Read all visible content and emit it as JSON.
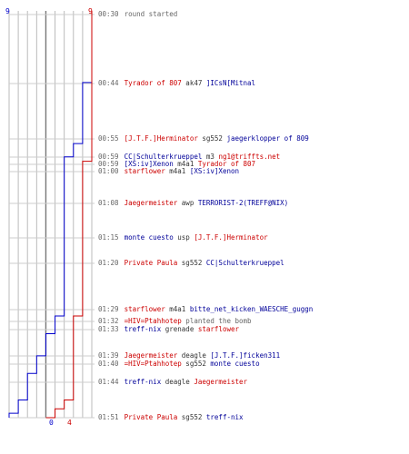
{
  "chart_data": {
    "type": "line",
    "series": [
      {
        "color": "#0000cc",
        "points": [
          [
            0,
            9
          ],
          [
            81,
            9
          ],
          [
            81,
            8
          ],
          [
            150,
            8
          ],
          [
            150,
            7
          ],
          [
            165,
            7
          ],
          [
            165,
            6
          ],
          [
            345,
            6
          ],
          [
            345,
            5
          ],
          [
            365,
            5
          ],
          [
            365,
            4
          ],
          [
            390,
            4
          ],
          [
            390,
            3
          ],
          [
            410,
            3
          ],
          [
            410,
            2
          ],
          [
            440,
            2
          ],
          [
            440,
            1
          ],
          [
            455,
            1
          ],
          [
            455,
            0
          ],
          [
            460,
            0
          ]
        ]
      },
      {
        "color": "#cc0000",
        "points": [
          [
            0,
            9
          ],
          [
            170,
            9
          ],
          [
            170,
            8
          ],
          [
            345,
            8
          ],
          [
            345,
            7
          ],
          [
            440,
            7
          ],
          [
            440,
            6
          ],
          [
            450,
            6
          ],
          [
            450,
            5
          ],
          [
            460,
            5
          ],
          [
            460,
            4
          ]
        ]
      }
    ],
    "ylim": [
      0,
      9
    ],
    "y_labels": [
      {
        "value": "0",
        "color": "#0000cc"
      },
      {
        "value": "4",
        "color": "#cc0000"
      }
    ],
    "top_labels": [
      {
        "value": "9",
        "color": "#0000cc"
      },
      {
        "value": "9",
        "color": "#cc0000"
      }
    ],
    "grid": true
  },
  "events": [
    {
      "time": "00:30",
      "parts": [
        {
          "text": "round started",
          "color": "gray"
        }
      ]
    },
    {
      "time": "00:44",
      "parts": [
        {
          "text": "Tyrador of 807",
          "color": "red"
        },
        {
          "text": " ak47 ",
          "color": "dark"
        },
        {
          "text": "]ICsN[Mitnal",
          "color": "blue"
        }
      ]
    },
    {
      "time": "00:55",
      "parts": [
        {
          "text": "[J.T.F.]Herminator",
          "color": "red"
        },
        {
          "text": " sg552 ",
          "color": "dark"
        },
        {
          "text": "jaegerklopper of 809",
          "color": "blue"
        }
      ]
    },
    {
      "time": "00:59",
      "parts": [
        {
          "text": "CC|Schulterkrueppel",
          "color": "blue"
        },
        {
          "text": " m3 ",
          "color": "dark"
        },
        {
          "text": "ng1@triffts.net",
          "color": "red"
        }
      ]
    },
    {
      "time": "00:59",
      "parts": [
        {
          "text": "[XS:iv]Xenon",
          "color": "blue"
        },
        {
          "text": " m4a1 ",
          "color": "dark"
        },
        {
          "text": "Tyrador of 807",
          "color": "red"
        }
      ]
    },
    {
      "time": "01:00",
      "parts": [
        {
          "text": "starflower",
          "color": "red"
        },
        {
          "text": " m4a1 ",
          "color": "dark"
        },
        {
          "text": "[XS:iv]Xenon",
          "color": "blue"
        }
      ]
    },
    {
      "time": "01:08",
      "parts": [
        {
          "text": "Jaegermeister",
          "color": "red"
        },
        {
          "text": " awp ",
          "color": "dark"
        },
        {
          "text": "TERRORIST-2(TREFF@NIX)",
          "color": "blue"
        }
      ]
    },
    {
      "time": "01:15",
      "parts": [
        {
          "text": "monte cuesto",
          "color": "blue"
        },
        {
          "text": " usp ",
          "color": "dark"
        },
        {
          "text": "[J.T.F.]Herminator",
          "color": "red"
        }
      ]
    },
    {
      "time": "01:20",
      "parts": [
        {
          "text": "Private Paula",
          "color": "red"
        },
        {
          "text": " sg552 ",
          "color": "dark"
        },
        {
          "text": "CC|Schulterkrueppel",
          "color": "blue"
        }
      ]
    },
    {
      "time": "01:29",
      "parts": [
        {
          "text": "starflower",
          "color": "red"
        },
        {
          "text": " m4a1 ",
          "color": "dark"
        },
        {
          "text": "bitte_net_kicken_WAESCHE_guggn",
          "color": "blue"
        }
      ]
    },
    {
      "time": "01:32",
      "parts": [
        {
          "text": "=HIV=Ptahhotep",
          "color": "red"
        },
        {
          "text": " planted the bomb",
          "color": "gray"
        }
      ]
    },
    {
      "time": "01:33",
      "parts": [
        {
          "text": "treff-nix",
          "color": "blue"
        },
        {
          "text": " grenade ",
          "color": "dark"
        },
        {
          "text": "starflower",
          "color": "red"
        }
      ]
    },
    {
      "time": "01:39",
      "parts": [
        {
          "text": "Jaegermeister",
          "color": "red"
        },
        {
          "text": " deagle ",
          "color": "dark"
        },
        {
          "text": "[J.T.F.]ficken311",
          "color": "blue"
        }
      ]
    },
    {
      "time": "01:40",
      "parts": [
        {
          "text": "=HIV=Ptahhotep",
          "color": "red"
        },
        {
          "text": " sg552 ",
          "color": "dark"
        },
        {
          "text": "monte cuesto",
          "color": "blue"
        }
      ]
    },
    {
      "time": "01:44",
      "parts": [
        {
          "text": "treff-nix",
          "color": "blue"
        },
        {
          "text": " deagle ",
          "color": "dark"
        },
        {
          "text": "Jaegermeister",
          "color": "red"
        }
      ]
    },
    {
      "time": "01:51",
      "parts": [
        {
          "text": "Private Paula",
          "color": "red"
        },
        {
          "text": " sg552 ",
          "color": "dark"
        },
        {
          "text": "treff-nix",
          "color": "blue"
        }
      ]
    }
  ]
}
